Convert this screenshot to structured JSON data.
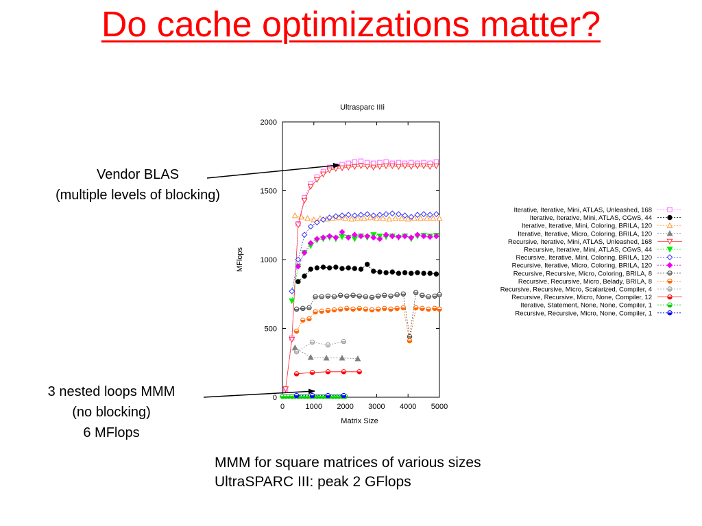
{
  "slide": {
    "title": "Do cache optimizations matter?",
    "annotation_blas": [
      "Vendor BLAS",
      "(multiple levels of blocking)"
    ],
    "annotation_naive": [
      "3 nested loops MMM",
      "(no blocking)",
      "6 MFlops"
    ],
    "caption": [
      "MMM for square matrices of various sizes",
      "UltraSPARC III: peak 2 GFlops"
    ]
  },
  "colors": {
    "title": "#ff0000",
    "axes": "#000000"
  },
  "chart_data": {
    "type": "line",
    "title": "Ultrasparc IIIi",
    "xlabel": "Matrix Size",
    "ylabel": "MFlops",
    "xlim": [
      0,
      5000
    ],
    "ylim": [
      0,
      2000
    ],
    "xticks": [
      0,
      1000,
      2000,
      3000,
      4000,
      5000
    ],
    "yticks": [
      0,
      500,
      1000,
      1500,
      2000
    ],
    "grid": false,
    "legend_position": "right",
    "series": [
      {
        "name": "Iterative, Iterative, Mini, ATLAS, Unleashed, 168",
        "color": "#ff66ff",
        "marker": "square",
        "filled": false,
        "dashed": true,
        "x": [
          100,
          300,
          500,
          700,
          900,
          1100,
          1300,
          1500,
          1700,
          1900,
          2100,
          2300,
          2500,
          2700,
          2900,
          3100,
          3300,
          3500,
          3700,
          3900,
          4100,
          4300,
          4500,
          4700,
          4900
        ],
        "y": [
          60,
          430,
          1260,
          1450,
          1550,
          1600,
          1640,
          1670,
          1680,
          1690,
          1700,
          1710,
          1715,
          1705,
          1700,
          1705,
          1710,
          1700,
          1705,
          1700,
          1705,
          1700,
          1705,
          1700,
          1710
        ]
      },
      {
        "name": "Iterative, Iterative, Mini, ATLAS, CGwS, 44",
        "color": "#000000",
        "marker": "circle",
        "filled": true,
        "dashed": true,
        "x": [
          500,
          700,
          900,
          1100,
          1300,
          1500,
          1700,
          1900,
          2100,
          2300,
          2500,
          2700,
          2900,
          3100,
          3300,
          3500,
          3700,
          3900,
          4100,
          4300,
          4500,
          4700,
          4900
        ],
        "y": [
          840,
          880,
          930,
          940,
          945,
          940,
          945,
          935,
          940,
          935,
          930,
          965,
          915,
          910,
          905,
          910,
          900,
          905,
          900,
          905,
          900,
          900,
          895
        ]
      },
      {
        "name": "Iterative, Iterative, Mini, Coloring, BRILA, 120",
        "color": "#ff9933",
        "marker": "triangle",
        "filled": false,
        "dashed": true,
        "x": [
          400,
          600,
          800,
          1000,
          1200,
          1400,
          1600,
          1800,
          2000,
          2200,
          2400,
          2600,
          2800,
          3000,
          3200,
          3400,
          3600,
          3800,
          4000,
          4200,
          4400,
          4600,
          4800,
          5000
        ],
        "y": [
          1320,
          1310,
          1300,
          1290,
          1300,
          1295,
          1300,
          1305,
          1300,
          1295,
          1300,
          1300,
          1305,
          1300,
          1300,
          1295,
          1300,
          1300,
          1295,
          1300,
          1300,
          1300,
          1300,
          1300
        ]
      },
      {
        "name": "Iterative, Iterative, Micro, Coloring, BRILA, 120",
        "color": "#808080",
        "marker": "triangle",
        "filled": true,
        "dashed": true,
        "x": [
          400,
          900,
          1400,
          1900,
          2400
        ],
        "y": [
          360,
          290,
          285,
          285,
          280
        ]
      },
      {
        "name": "Recursive, Iterative, Mini, ATLAS, Unleashed, 168",
        "color": "#ff3333",
        "marker": "triangle-down",
        "filled": false,
        "dashed": false,
        "x": [
          100,
          300,
          500,
          700,
          900,
          1100,
          1300,
          1500,
          1700,
          1900,
          2100,
          2300,
          2500,
          2700,
          2900,
          3100,
          3300,
          3500,
          3700,
          3900,
          4100,
          4300,
          4500,
          4700,
          4900
        ],
        "y": [
          60,
          420,
          1250,
          1430,
          1530,
          1580,
          1620,
          1650,
          1660,
          1665,
          1670,
          1675,
          1680,
          1675,
          1670,
          1675,
          1680,
          1680,
          1675,
          1680,
          1675,
          1680,
          1680,
          1675,
          1680
        ]
      },
      {
        "name": "Recursive, Iterative, Mini, ATLAS, CGwS, 44",
        "color": "#00ee00",
        "marker": "triangle-down",
        "filled": true,
        "dashed": true,
        "x": [
          300,
          500,
          700,
          900,
          1100,
          1300,
          1500,
          1700,
          1900,
          2100,
          2300,
          2500,
          2700,
          2900,
          3100,
          3300,
          3500,
          3700,
          3900,
          4100,
          4300,
          4500,
          4700,
          4900
        ],
        "y": [
          700,
          950,
          1050,
          1100,
          1140,
          1150,
          1160,
          1150,
          1165,
          1160,
          1150,
          1170,
          1160,
          1180,
          1170,
          1165,
          1170,
          1160,
          1170,
          1150,
          1170,
          1175,
          1170,
          1175
        ]
      },
      {
        "name": "Recursive, Iterative, Mini, Coloring, BRILA, 120",
        "color": "#3333ff",
        "marker": "diamond",
        "filled": false,
        "dashed": true,
        "x": [
          300,
          500,
          700,
          900,
          1100,
          1300,
          1500,
          1700,
          1900,
          2100,
          2300,
          2500,
          2700,
          2900,
          3100,
          3300,
          3500,
          3700,
          3900,
          4100,
          4300,
          4500,
          4700,
          4900
        ],
        "y": [
          770,
          1000,
          1180,
          1240,
          1270,
          1290,
          1305,
          1315,
          1320,
          1325,
          1320,
          1325,
          1330,
          1320,
          1325,
          1330,
          1335,
          1330,
          1320,
          1310,
          1325,
          1330,
          1325,
          1330
        ]
      },
      {
        "name": "Recursive, Iterative, Micro, Coloring, BRILA, 120",
        "color": "#ee00ee",
        "marker": "diamond",
        "filled": true,
        "dashed": true,
        "x": [
          500,
          700,
          900,
          1100,
          1300,
          1500,
          1700,
          1900,
          2100,
          2300,
          2500,
          2700,
          2900,
          3100,
          3300,
          3500,
          3700,
          3900,
          4100,
          4300,
          4500,
          4700,
          4900
        ],
        "y": [
          950,
          1050,
          1120,
          1150,
          1160,
          1170,
          1160,
          1200,
          1160,
          1180,
          1170,
          1170,
          1160,
          1150,
          1180,
          1170,
          1165,
          1170,
          1160,
          1180,
          1170,
          1165,
          1170
        ]
      },
      {
        "name": "Recursive, Recursive, Micro, Coloring, BRILA, 8",
        "color": "#444444",
        "marker": "circle-half",
        "filled": false,
        "dashed": true,
        "x": [
          450,
          650,
          850,
          1050,
          1250,
          1450,
          1650,
          1850,
          2050,
          2250,
          2450,
          2650,
          2850,
          3050,
          3250,
          3450,
          3650,
          3850,
          4050,
          4250,
          4450,
          4650,
          4850,
          5000
        ],
        "y": [
          640,
          645,
          650,
          730,
          730,
          735,
          730,
          740,
          735,
          740,
          735,
          730,
          725,
          735,
          740,
          735,
          745,
          750,
          440,
          760,
          740,
          730,
          735,
          745
        ]
      },
      {
        "name": "Recursive, Recursive, Micro, Belady, BRILA, 8",
        "color": "#ff6600",
        "marker": "circle-half",
        "filled": true,
        "dashed": true,
        "x": [
          450,
          650,
          850,
          1050,
          1250,
          1450,
          1650,
          1850,
          2050,
          2250,
          2450,
          2650,
          2850,
          3050,
          3250,
          3450,
          3650,
          3850,
          4050,
          4250,
          4450,
          4650,
          4850,
          5000
        ],
        "y": [
          480,
          560,
          570,
          620,
          625,
          630,
          635,
          640,
          645,
          640,
          645,
          640,
          635,
          640,
          645,
          640,
          645,
          650,
          410,
          650,
          645,
          640,
          645,
          640
        ]
      },
      {
        "name": "Recursive, Recursive, Micro, Scalarized, Compiler, 4",
        "color": "#999999",
        "marker": "circle-half",
        "filled": false,
        "dashed": true,
        "x": [
          450,
          950,
          1450,
          1950
        ],
        "y": [
          330,
          400,
          380,
          405
        ]
      },
      {
        "name": "Recursive, Recursive, Micro, None, Compiler, 12",
        "color": "#ff0000",
        "marker": "circle-half",
        "filled": true,
        "dashed": false,
        "x": [
          450,
          950,
          1450,
          1950,
          2450
        ],
        "y": [
          170,
          180,
          185,
          185,
          185
        ]
      },
      {
        "name": "Iterative, Statement, None, None, Compiler, 1",
        "color": "#00cc00",
        "marker": "circle-half",
        "filled": true,
        "dashed": true,
        "x": [
          0,
          100,
          200,
          300,
          400,
          500,
          600,
          700,
          800,
          900,
          1000,
          1100,
          1200,
          1300,
          1400,
          1500,
          1600,
          1700,
          1800,
          1900,
          2000
        ],
        "y": [
          6,
          6,
          6,
          6,
          6,
          6,
          6,
          6,
          6,
          6,
          6,
          6,
          6,
          6,
          6,
          6,
          6,
          6,
          6,
          6,
          6
        ]
      },
      {
        "name": "Recursive, Recursive, Micro, None, Compiler, 1",
        "color": "#0000ff",
        "marker": "circle-half",
        "filled": true,
        "dashed": true,
        "x": [
          450,
          950,
          1450,
          1950
        ],
        "y": [
          12,
          12,
          12,
          12
        ]
      }
    ]
  }
}
